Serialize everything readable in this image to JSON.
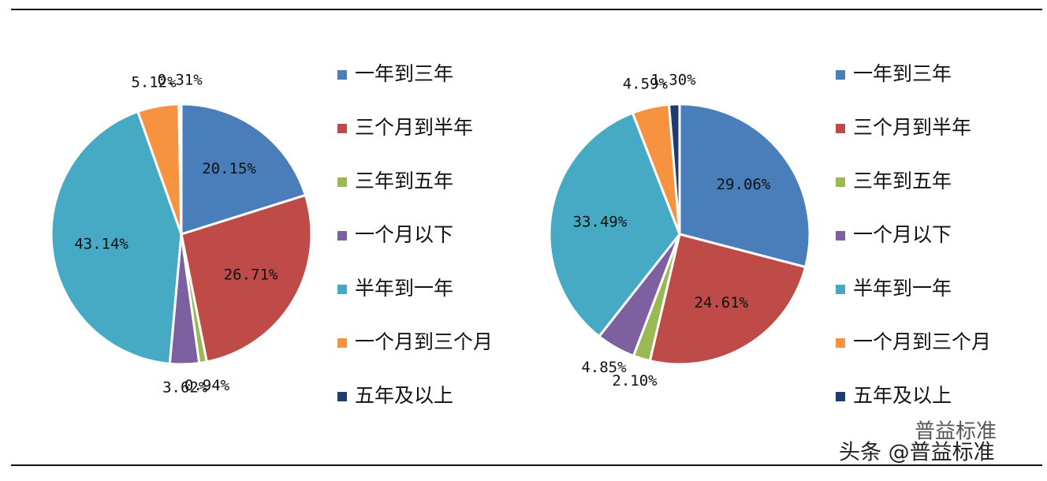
{
  "chart_data": [
    {
      "type": "pie",
      "categories": [
        "一年到三年",
        "三个月到半年",
        "三年到五年",
        "一个月以下",
        "半年到一年",
        "一个月到三个月",
        "五年及以上"
      ],
      "values": [
        20.15,
        26.71,
        0.94,
        3.62,
        43.14,
        5.12,
        0.31
      ],
      "value_labels": [
        "20.15%",
        "26.71%",
        "0.94%",
        "3.62%",
        "43.14%",
        "5.12%",
        "0.31%"
      ],
      "colors": [
        "#4a7ebb",
        "#be4b48",
        "#98b954",
        "#7d60a0",
        "#46aac5",
        "#f69240",
        "#1f3c6e"
      ],
      "legend": "right"
    },
    {
      "type": "pie",
      "categories": [
        "一年到三年",
        "三个月到半年",
        "三年到五年",
        "一个月以下",
        "半年到一年",
        "一个月到三个月",
        "五年及以上"
      ],
      "values": [
        29.06,
        24.61,
        2.1,
        4.85,
        33.49,
        4.59,
        1.3
      ],
      "value_labels": [
        "29.06%",
        "24.61%",
        "2.10%",
        "4.85%",
        "33.49%",
        "4.59%",
        "1.30%"
      ],
      "colors": [
        "#4a7ebb",
        "#be4b48",
        "#98b954",
        "#7d60a0",
        "#46aac5",
        "#f69240",
        "#1f3c6e"
      ],
      "legend": "right"
    }
  ],
  "watermark": {
    "small": "普益标准",
    "main": "头条 @普益标准"
  }
}
